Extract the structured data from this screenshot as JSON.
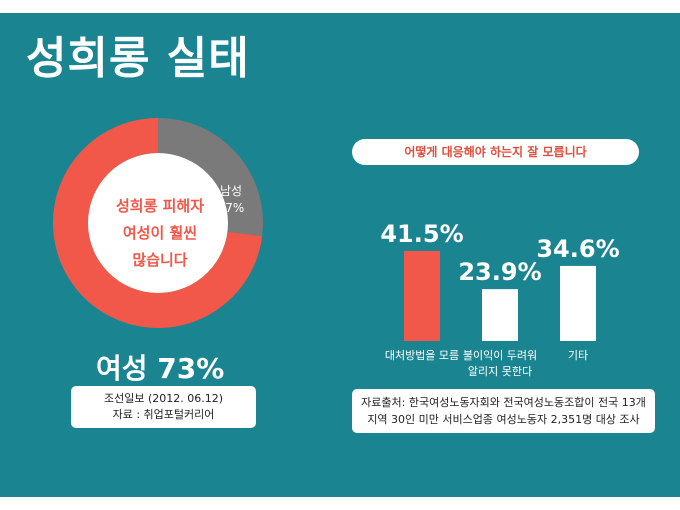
{
  "title": "성희롱 실태",
  "colors": {
    "background": "#1a8491",
    "accent": "#f2584a",
    "male": "#7a7a7a",
    "white": "#ffffff"
  },
  "donut": {
    "center_lines": [
      "성희롱 피해자",
      "여성이 훨씬",
      "많습니다"
    ],
    "male_label": "남성",
    "male_value": "27%",
    "female_label": "여성 73%"
  },
  "source_left": {
    "line1": "조선일보 (2012. 06.12)",
    "line2": "자료 : 취업포털커리어"
  },
  "question": "어떻게 대응해야 하는지 잘 모릅니다",
  "source_right": {
    "line1": "자료출처: 한국여성노동자회와 전국여성노동조합이 전국 13개",
    "line2": "지역 30인 미만 서비스업종 여성노동자 2,351명 대상 조사"
  },
  "chart_data": [
    {
      "type": "pie",
      "labels": [
        "여성",
        "남성"
      ],
      "values": [
        73,
        27
      ],
      "colors": [
        "#f2584a",
        "#7a7a7a"
      ]
    },
    {
      "type": "bar",
      "categories": [
        [
          "대처방법을 모름"
        ],
        [
          "불이익이 두려워",
          "알리지 못한다"
        ],
        [
          "기타"
        ]
      ],
      "values": [
        41.5,
        23.9,
        34.6
      ],
      "value_labels": [
        "41.5%",
        "23.9%",
        "34.6%"
      ],
      "colors": [
        "#f2584a",
        "#ffffff",
        "#ffffff"
      ]
    }
  ]
}
